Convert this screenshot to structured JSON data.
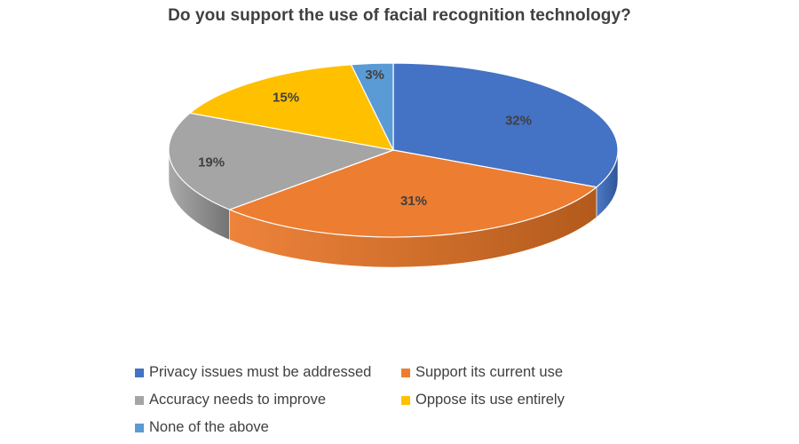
{
  "chart_data": {
    "type": "pie",
    "title": "Do you support the use of facial recognition technology?",
    "slices": [
      {
        "label": "Privacy issues must be addressed",
        "value": 32,
        "display": "32%",
        "color": "#4472C4",
        "side": "#2E5597"
      },
      {
        "label": "Support its current use",
        "value": 31,
        "display": "31%",
        "color": "#ED7D31",
        "side": "#B25A1C"
      },
      {
        "label": "Accuracy needs to improve",
        "value": 19,
        "display": "19%",
        "color": "#A5A5A5",
        "side": "#737373"
      },
      {
        "label": "Oppose its use entirely",
        "value": 15,
        "display": "15%",
        "color": "#FFC000",
        "side": "#B88A00"
      },
      {
        "label": "None of the above",
        "value": 3,
        "display": "3%",
        "color": "#5B9BD5",
        "side": "#3C72A4"
      }
    ],
    "legend_position": "bottom",
    "three_d": true
  }
}
